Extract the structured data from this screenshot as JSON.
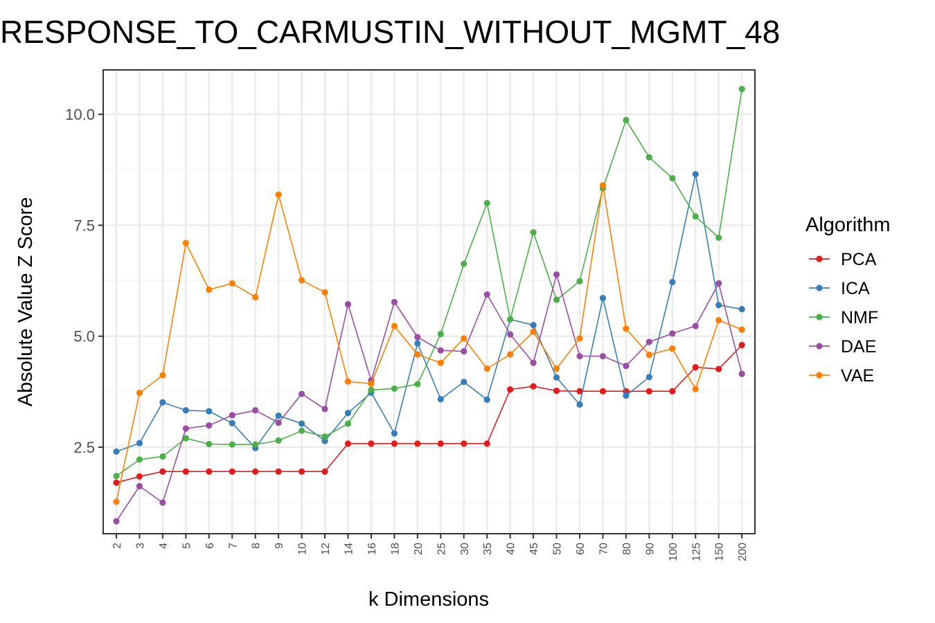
{
  "chart_data": {
    "type": "line",
    "title": "RESPONSE_TO_CARMUSTIN_WITHOUT_MGMT_48",
    "xlabel": "k Dimensions",
    "ylabel": "Absolute Value Z Score",
    "x": [
      "2",
      "3",
      "4",
      "5",
      "6",
      "7",
      "8",
      "9",
      "10",
      "12",
      "14",
      "16",
      "18",
      "20",
      "25",
      "30",
      "35",
      "40",
      "45",
      "50",
      "60",
      "70",
      "80",
      "90",
      "100",
      "125",
      "150",
      "200"
    ],
    "ylim": [
      0.55,
      11.0
    ],
    "yticks": [
      "2.5",
      "5.0",
      "7.5",
      "10.0"
    ],
    "grid": true,
    "legend": {
      "title": "Algorithm",
      "position": "right"
    },
    "series": [
      {
        "name": "PCA",
        "color": "#e41a1c",
        "values": [
          1.7,
          1.84,
          1.95,
          1.95,
          1.95,
          1.95,
          1.95,
          1.95,
          1.95,
          1.95,
          2.58,
          2.58,
          2.58,
          2.58,
          2.58,
          2.58,
          2.58,
          3.8,
          3.87,
          3.77,
          3.76,
          3.76,
          3.76,
          3.76,
          3.76,
          4.3,
          4.26,
          4.8
        ]
      },
      {
        "name": "ICA",
        "color": "#377eb8",
        "values": [
          2.4,
          2.59,
          3.51,
          3.33,
          3.31,
          3.04,
          2.48,
          3.21,
          3.03,
          2.64,
          3.27,
          3.73,
          2.81,
          4.84,
          3.58,
          3.97,
          3.57,
          5.38,
          5.25,
          4.07,
          3.46,
          5.86,
          3.66,
          4.08,
          6.22,
          8.65,
          5.7,
          5.61
        ]
      },
      {
        "name": "NMF",
        "color": "#4daf4a",
        "values": [
          1.85,
          2.22,
          2.29,
          2.7,
          2.57,
          2.56,
          2.56,
          2.65,
          2.87,
          2.74,
          3.03,
          3.79,
          3.82,
          3.92,
          5.05,
          6.63,
          8.0,
          5.38,
          7.34,
          5.82,
          6.24,
          8.33,
          9.87,
          9.03,
          8.56,
          7.7,
          7.22,
          10.57
        ]
      },
      {
        "name": "DAE",
        "color": "#984ea3",
        "values": [
          0.83,
          1.62,
          1.25,
          2.92,
          2.99,
          3.22,
          3.33,
          3.05,
          3.7,
          3.36,
          5.72,
          4.0,
          5.77,
          4.98,
          4.68,
          4.66,
          5.94,
          5.04,
          4.4,
          6.39,
          4.55,
          4.55,
          4.33,
          4.87,
          5.06,
          5.23,
          6.19,
          4.15
        ]
      },
      {
        "name": "VAE",
        "color": "#ff7f00",
        "values": [
          1.27,
          3.72,
          4.12,
          7.1,
          6.05,
          6.19,
          5.88,
          8.19,
          6.26,
          5.99,
          3.98,
          3.93,
          5.23,
          4.59,
          4.4,
          4.95,
          4.27,
          4.59,
          5.1,
          4.27,
          4.95,
          8.4,
          5.17,
          4.58,
          4.72,
          3.81,
          5.36,
          5.15
        ]
      }
    ]
  }
}
